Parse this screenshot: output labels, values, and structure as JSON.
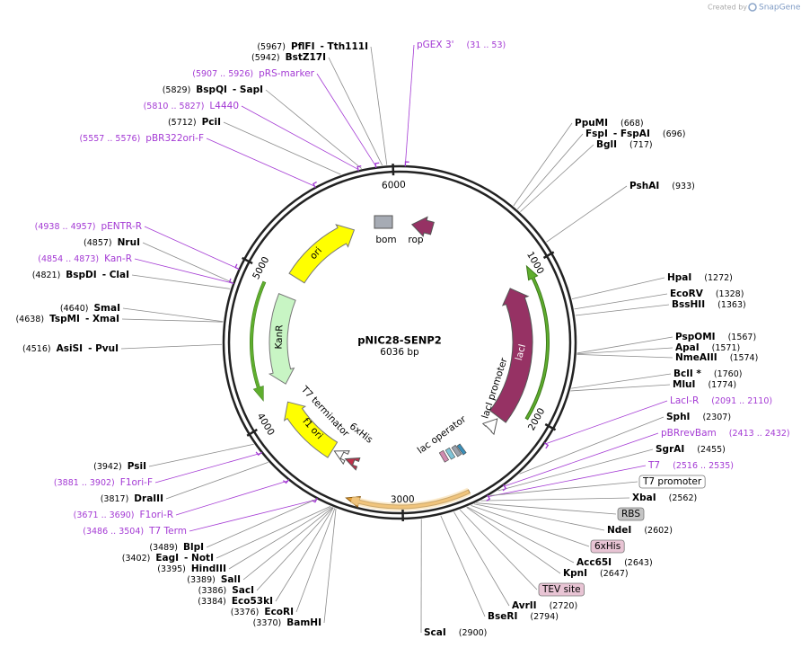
{
  "credit": "Created by",
  "brand": "SnapGene",
  "plasmid": {
    "name": "pNIC28-SENP2",
    "size": "6036 bp",
    "ticks": [
      1000,
      2000,
      3000,
      4000,
      5000,
      6000
    ]
  },
  "features": [
    "ori",
    "KanR",
    "f1 ori",
    "T7 terminator",
    "6xHis",
    "lacI promoter",
    "lacI",
    "lac operator",
    "bom",
    "rop"
  ],
  "left_labels": [
    {
      "position": "(5967)",
      "name": "PflFI",
      "name2": "- Tth111I"
    },
    {
      "position": "(5942)",
      "name": "BstZ17I"
    },
    {
      "position": "(5907 .. 5926)",
      "name": "pRS-marker",
      "color": "#a43ad4"
    },
    {
      "position": "(5829)",
      "name": "BspQI",
      "name2": "- SapI"
    },
    {
      "position": "(5810 .. 5827)",
      "name": "L4440",
      "color": "#a43ad4"
    },
    {
      "position": "(5712)",
      "name": "PciI"
    },
    {
      "position": "(5557 .. 5576)",
      "name": "pBR322ori-F",
      "color": "#a43ad4"
    },
    {
      "position": "(4938 .. 4957)",
      "name": "pENTR-R",
      "color": "#a43ad4"
    },
    {
      "position": "(4857)",
      "name": "NruI"
    },
    {
      "position": "(4854 .. 4873)",
      "name": "Kan-R",
      "color": "#a43ad4"
    },
    {
      "position": "(4821)",
      "name": "BspDI",
      "name2": "- ClaI"
    },
    {
      "position": "(4640)",
      "name": "SmaI"
    },
    {
      "position": "(4638)",
      "name": "TspMI",
      "name2": "- XmaI"
    },
    {
      "position": "(4516)",
      "name": "AsiSI",
      "name2": "- PvuI"
    },
    {
      "position": "(3942)",
      "name": "PsiI"
    },
    {
      "position": "(3881 .. 3902)",
      "name": "F1ori-F",
      "color": "#a43ad4"
    },
    {
      "position": "(3817)",
      "name": "DraIII"
    },
    {
      "position": "(3671 .. 3690)",
      "name": "F1ori-R",
      "color": "#a43ad4"
    },
    {
      "position": "(3486 .. 3504)",
      "name": "T7 Term",
      "color": "#a43ad4"
    },
    {
      "position": "(3489)",
      "name": "BlpI"
    },
    {
      "position": "(3402)",
      "name": "EagI",
      "name2": "- NotI"
    },
    {
      "position": "(3395)",
      "name": "HindIII"
    },
    {
      "position": "(3389)",
      "name": "SalI"
    },
    {
      "position": "(3386)",
      "name": "SacI"
    },
    {
      "position": "(3384)",
      "name": "Eco53kI"
    },
    {
      "position": "(3376)",
      "name": "EcoRI"
    },
    {
      "position": "(3370)",
      "name": "BamHI"
    }
  ],
  "right_labels": [
    {
      "name": "pGEX 3'",
      "position": "(31 .. 53)",
      "color": "#a43ad4"
    },
    {
      "name": "PpuMI",
      "position": "(668)"
    },
    {
      "name": "FspI",
      "name2": "- FspAI",
      "position": "(696)"
    },
    {
      "name": "BglI",
      "position": "(717)"
    },
    {
      "name": "PshAI",
      "position": "(933)"
    },
    {
      "name": "HpaI",
      "position": "(1272)"
    },
    {
      "name": "EcoRV",
      "position": "(1328)"
    },
    {
      "name": "BssHII",
      "position": "(1363)"
    },
    {
      "name": "PspOMI",
      "position": "(1567)"
    },
    {
      "name": "ApaI",
      "position": "(1571)"
    },
    {
      "name": "NmeAIII",
      "position": "(1574)"
    },
    {
      "name": "BclI *",
      "position": "(1760)"
    },
    {
      "name": "MluI",
      "position": "(1774)"
    },
    {
      "name": "LacI-R",
      "position": "(2091 .. 2110)",
      "color": "#a43ad4"
    },
    {
      "name": "SphI",
      "position": "(2307)"
    },
    {
      "name": "pBRrevBam",
      "position": "(2413 .. 2432)",
      "color": "#a43ad4"
    },
    {
      "name": "SgrAI",
      "position": "(2455)"
    },
    {
      "name": "T7",
      "position": "(2516 .. 2535)",
      "color": "#a43ad4"
    },
    {
      "name": "T7 promoter",
      "box": "#ffffff"
    },
    {
      "name": "XbaI",
      "position": "(2562)"
    },
    {
      "name": "RBS",
      "box": "#c4c4c4"
    },
    {
      "name": "NdeI",
      "position": "(2602)"
    },
    {
      "name": "6xHis",
      "box": "#e8c4d4"
    },
    {
      "name": "Acc65I",
      "position": "(2643)"
    },
    {
      "name": "KpnI",
      "position": "(2647)"
    },
    {
      "name": "TEV site",
      "box": "#e8c4d4"
    },
    {
      "name": "AvrII",
      "position": "(2720)"
    },
    {
      "name": "BseRI",
      "position": "(2794)"
    },
    {
      "name": "ScaI",
      "position": "(2900)"
    }
  ]
}
